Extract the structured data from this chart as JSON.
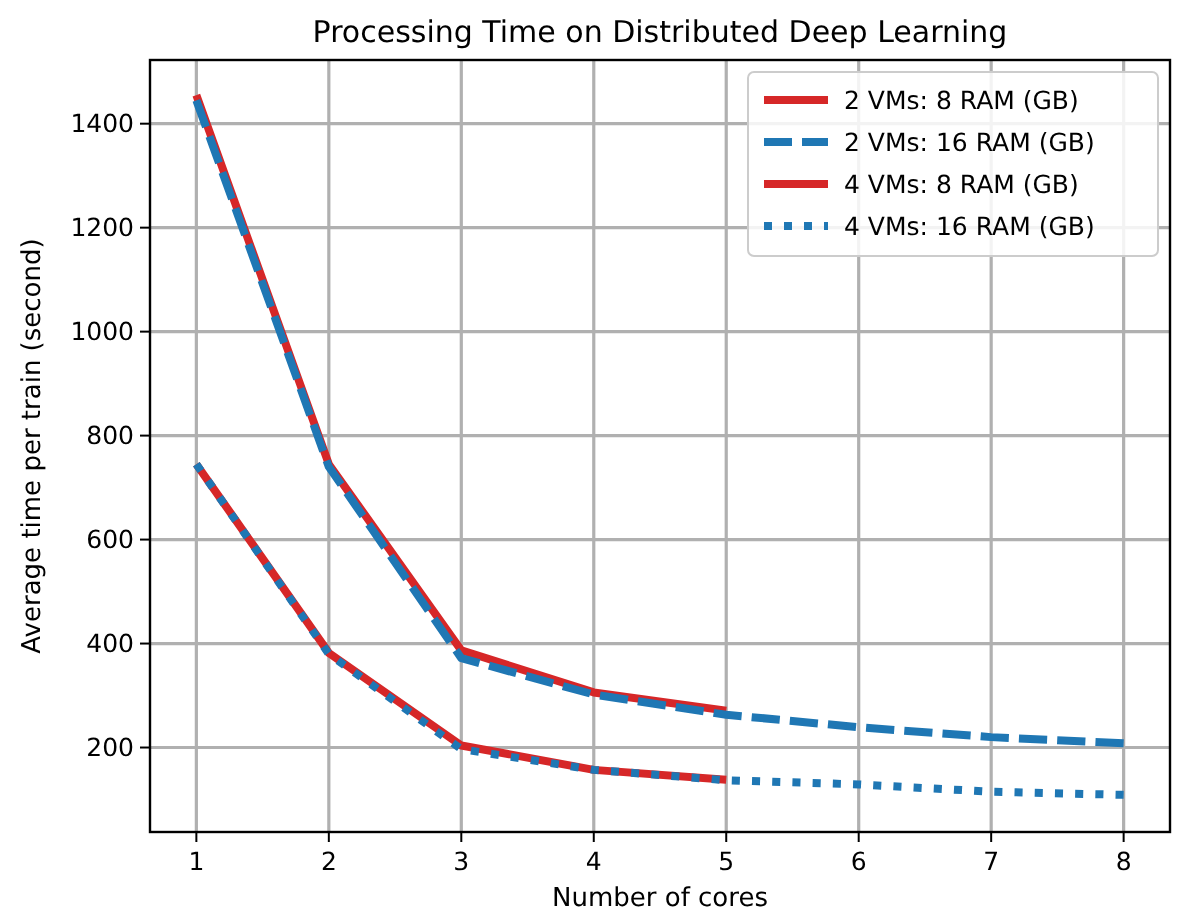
{
  "chart_data": {
    "type": "line",
    "title": "Processing Time on Distributed Deep Learning",
    "xlabel": "Number of cores",
    "ylabel": "Average time per train (second)",
    "xlim": [
      0.65,
      8.35
    ],
    "xticks": [
      1,
      2,
      3,
      4,
      5,
      6,
      7,
      8
    ],
    "ylim": [
      37.5,
      1522.5
    ],
    "yticks": [
      200,
      400,
      600,
      800,
      1000,
      1200,
      1400
    ],
    "grid": true,
    "legend": "top right",
    "series": [
      {
        "name": "2 VMs: 8 RAM (GB)",
        "color": "#d62728",
        "line_style": "solid",
        "x": [
          1,
          2,
          3,
          4,
          5
        ],
        "values": [
          1455,
          745,
          387,
          306,
          271
        ]
      },
      {
        "name": "2 VMs: 16 RAM (GB)",
        "color": "#1f77b4",
        "line_style": "dashed",
        "x": [
          1,
          2,
          3,
          4,
          5,
          6,
          7,
          8
        ],
        "values": [
          1445,
          740,
          372,
          302,
          263,
          239,
          220,
          208
        ]
      },
      {
        "name": "4 VMs: 8 RAM (GB)",
        "color": "#d62728",
        "line_style": "solid",
        "x": [
          1,
          2,
          3,
          4,
          5
        ],
        "values": [
          745,
          382,
          204,
          157,
          138
        ]
      },
      {
        "name": "4 VMs: 16 RAM (GB)",
        "color": "#1f77b4",
        "line_style": "dotted",
        "x": [
          1,
          2,
          3,
          4,
          5,
          6,
          7,
          8
        ],
        "values": [
          745,
          380,
          197,
          157,
          137,
          129,
          115,
          109
        ]
      }
    ]
  }
}
